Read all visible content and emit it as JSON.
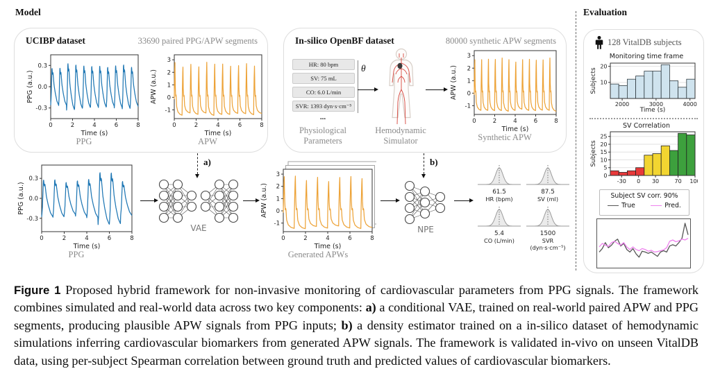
{
  "header": {
    "model_label": "Model",
    "evaluation_label": "Evaluation"
  },
  "ucibp": {
    "title": "UCIBP dataset",
    "subtitle": "33690 paired PPG/APW segments",
    "ppg_caption": "PPG",
    "apw_caption": "APW"
  },
  "insilico": {
    "title": "In-silico OpenBF dataset",
    "subtitle": "80000 synthetic APW segments",
    "theta": "θ",
    "params": [
      "HR: 80 bpm",
      "SV: 75 mL",
      "CO: 6.0 L/min",
      "SVR: 1393 dyn·s·cm⁻⁵"
    ],
    "ellipsis": "...",
    "params_caption_1": "Physiological",
    "params_caption_2": "Parameters",
    "sim_caption_1": "Hemodynamic",
    "sim_caption_2": "Simulator",
    "plot_caption": "Synthetic APW"
  },
  "pipeline": {
    "ppg_caption": "PPG",
    "vae_label": "VAE",
    "a_label": "a)",
    "gen_caption": "Generated APWs",
    "npe_label": "NPE",
    "b_label": "b)"
  },
  "posteriors": [
    {
      "value": "61.5",
      "label": "HR (bpm)"
    },
    {
      "value": "87.5",
      "label": "SV (ml)"
    },
    {
      "value": "5.4",
      "label": "CO (L/min)"
    },
    {
      "value": "1500",
      "label": "SVR (dyn·s·cm⁻⁵)"
    }
  ],
  "evaluation": {
    "subjects_label": "128 VitalDB subjects",
    "hist1_title": "Monitoring time frame",
    "hist2_title": "SV Correlation",
    "legend_title": "Subject SV corr. 90%",
    "legend_true": "True",
    "legend_pred": "Pred."
  },
  "caption": {
    "tag": "Figure 1",
    "parts": [
      {
        "t": "  Proposed hybrid framework for non-invasive monitoring of cardiovascular parameters from PPG signals. The framework combines simulated and real-world data across two key components: ",
        "b": false
      },
      {
        "t": "a)",
        "b": true
      },
      {
        "t": " a conditional VAE, trained on real-world paired APW and PPG segments, producing plausible APW signals from PPG inputs; ",
        "b": false
      },
      {
        "t": "b)",
        "b": true
      },
      {
        "t": " a density estimator trained on a in-silico dataset of hemodynamic simulations inferring cardiovascular biomarkers from generated APW signals. The framework is validated in-vivo on unseen VitalDB data, using per-subject Spearman correlation between ground truth and predicted values of cardiovascular biomarkers.",
        "b": false
      }
    ]
  },
  "chart_data": {
    "ppg_ucibp": {
      "type": "waveform",
      "signal": "ppg",
      "n_beats": 11,
      "seed": 7,
      "jitter": 0.12,
      "color": "#1f77b4",
      "ylabel": "PPG (a.u.)",
      "xlabel": "Time (s)",
      "yticks": [
        "0.3",
        "0.0",
        "-0.3"
      ],
      "xticks": [
        "0",
        "2",
        "4",
        "6",
        "8"
      ],
      "xlim": [
        0,
        8
      ],
      "ylim": [
        -0.45,
        0.45
      ]
    },
    "apw_ucibp": {
      "type": "waveform",
      "signal": "apw",
      "n_beats": 11,
      "seed": 3,
      "jitter": 0.1,
      "color": "#eda338",
      "ylabel": "APW (a.u.)",
      "xlabel": "Time (s)",
      "yticks": [
        "3",
        "2",
        "1",
        "0",
        "-1"
      ],
      "xticks": [
        "0",
        "2",
        "4",
        "6",
        "8"
      ],
      "xlim": [
        0,
        8
      ],
      "ylim": [
        -1.7,
        3.4
      ]
    },
    "apw_synthetic": {
      "type": "waveform",
      "signal": "apw",
      "n_beats": 12,
      "seed": 11,
      "jitter": 0.08,
      "color": "#eda338",
      "ylabel": "APW (a.u.)",
      "xlabel": "Time (s)",
      "yticks": [
        "3",
        "2",
        "1",
        "0",
        "-1"
      ],
      "xticks": [
        "0",
        "2",
        "4",
        "6",
        "8"
      ],
      "xlim": [
        0,
        8
      ],
      "ylim": [
        -1.7,
        3.4
      ]
    },
    "ppg_input": {
      "type": "waveform",
      "signal": "ppg",
      "n_beats": 8,
      "seed": 21,
      "jitter": 0.42,
      "color": "#1f77b4",
      "ylabel": "PPG (a.u.)",
      "xlabel": "Time (s)",
      "yticks": [
        "0.3",
        "0.0",
        "-0.3"
      ],
      "xticks": [
        "0",
        "2",
        "4",
        "6",
        "8"
      ],
      "xlim": [
        0,
        8
      ],
      "ylim": [
        -0.5,
        0.5
      ]
    },
    "apw_generated": {
      "type": "waveform",
      "signal": "apw",
      "n_beats": 8,
      "seed": 5,
      "jitter": 0.12,
      "stacked": true,
      "color": "#eda338",
      "ylabel": "APW (a.u.)",
      "xlabel": "Time (s)",
      "yticks": [
        "3",
        "2",
        "1",
        "0",
        "-1"
      ],
      "xticks": [
        "0",
        "2",
        "4",
        "6",
        "8"
      ],
      "xlim": [
        0,
        8
      ],
      "ylim": [
        -1.7,
        3.4
      ]
    },
    "monitoring_hist": {
      "type": "histogram",
      "title": "Monitoring time frame",
      "values": [
        9,
        8,
        12,
        14,
        17,
        17,
        21,
        11,
        7,
        12
      ],
      "xlim": [
        1650,
        4150
      ],
      "xticks": [
        "2000",
        "3000",
        "4000"
      ],
      "yticks": [
        "10",
        "20"
      ],
      "ylim": [
        0,
        22
      ],
      "bar_color": "#cfe3ee",
      "edge_color": "#2f3a40",
      "ylabel": "Subjects",
      "xlabel": "Time (s)",
      "grid": true
    },
    "sv_corr_hist": {
      "type": "histogram",
      "title": "SV Correlation",
      "values": [
        3,
        2,
        3,
        5,
        13,
        14,
        19,
        16,
        27,
        26
      ],
      "bar_colors": [
        "#e8393a",
        "#e8393a",
        "#e8393a",
        "#e8393a",
        "#f2d531",
        "#f2d531",
        "#f2d531",
        "#3da03d",
        "#3da03d",
        "#3da03d"
      ],
      "xlim": [
        -50,
        100
      ],
      "xticks": [
        "-30",
        "0",
        "30",
        "70",
        "100"
      ],
      "yticks": [
        "0",
        "5",
        "10",
        "15",
        "20",
        "25"
      ],
      "ylim": [
        0,
        28
      ],
      "edge_color": "#222222",
      "ylabel": "Subjects",
      "xlabel": "",
      "grid": true
    },
    "sv_trace": {
      "type": "multiline",
      "legend_title": "Subject SV corr. 90%",
      "series": [
        {
          "name": "True",
          "color": "#555555",
          "y": [
            0.3,
            0.38,
            0.52,
            0.4,
            0.46,
            0.55,
            0.6,
            0.44,
            0.5,
            0.36,
            0.3,
            0.38,
            0.26,
            0.18,
            0.32,
            0.3,
            0.27,
            0.3,
            0.25,
            0.2,
            0.3,
            0.33,
            0.3,
            0.44,
            0.47,
            0.44,
            0.52,
            0.62,
            0.97,
            0.7
          ]
        },
        {
          "name": "Pred.",
          "color": "#ee82ee",
          "y": [
            0.42,
            0.5,
            0.46,
            0.43,
            0.52,
            0.55,
            0.5,
            0.46,
            0.52,
            0.42,
            0.36,
            0.42,
            0.36,
            0.33,
            0.38,
            0.36,
            0.32,
            0.34,
            0.3,
            0.31,
            0.33,
            0.35,
            0.4,
            0.55,
            0.58,
            0.54,
            0.56,
            0.6,
            0.58,
            0.62
          ]
        }
      ]
    },
    "posterior_curve": {
      "type": "gauss",
      "fill": "#ebebeb",
      "line": "#9a9a9a",
      "vline": "#666666"
    }
  }
}
